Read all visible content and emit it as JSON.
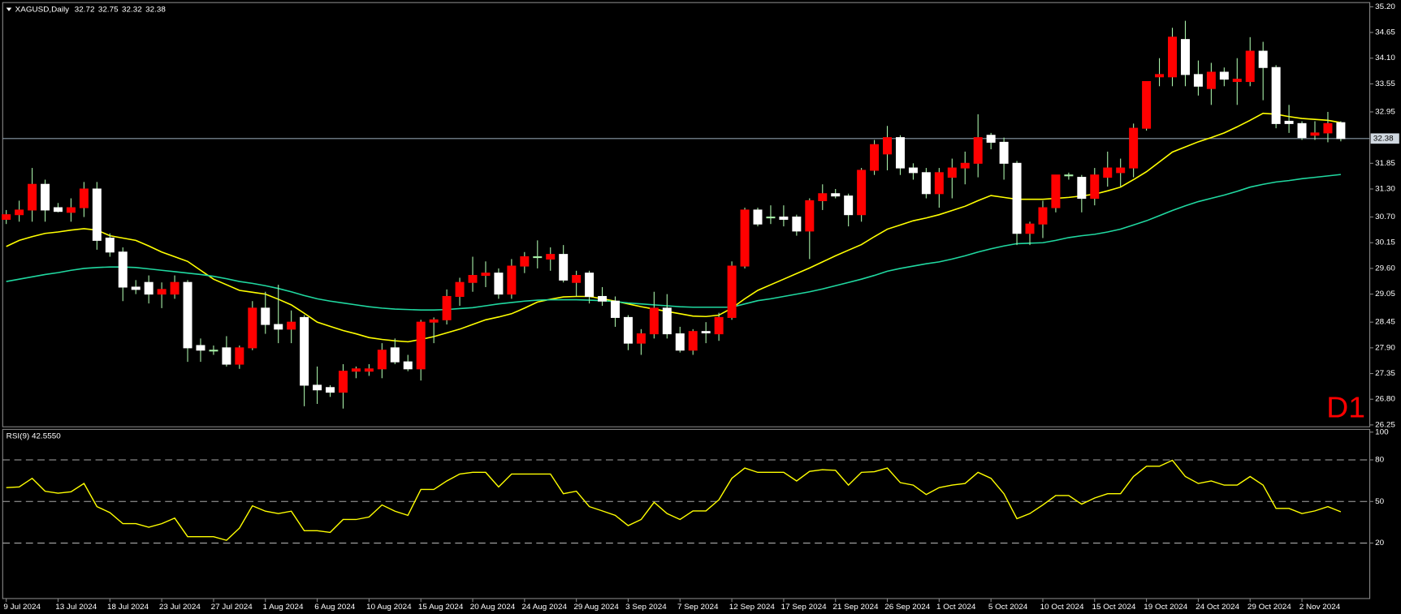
{
  "chart_data": {
    "type": "candlestick",
    "title": "XAGUSD,Daily",
    "annotation": "D1",
    "up_color": "#ff0000",
    "down_color": "#ffffff",
    "wick_color": "#a8f0a8",
    "last_price_line": true,
    "categories": [
      "9 Jul 2024",
      null,
      null,
      null,
      "13 Jul 2024",
      null,
      null,
      null,
      "18 Jul 2024",
      null,
      null,
      null,
      "23 Jul 2024",
      null,
      null,
      null,
      "27 Jul 2024",
      null,
      null,
      null,
      "1 Aug 2024",
      null,
      null,
      null,
      "6 Aug 2024",
      null,
      null,
      null,
      "10 Aug 2024",
      null,
      null,
      null,
      "15 Aug 2024",
      null,
      null,
      null,
      "20 Aug 2024",
      null,
      null,
      null,
      "24 Aug 2024",
      null,
      null,
      null,
      "29 Aug 2024",
      null,
      null,
      null,
      "3 Sep 2024",
      null,
      null,
      null,
      "7 Sep 2024",
      null,
      null,
      null,
      "12 Sep 2024",
      null,
      null,
      null,
      "17 Sep 2024",
      null,
      null,
      null,
      "21 Sep 2024",
      null,
      null,
      null,
      "26 Sep 2024",
      null,
      null,
      null,
      "1 Oct 2024",
      null,
      null,
      null,
      "5 Oct 2024",
      null,
      null,
      null,
      "10 Oct 2024",
      null,
      null,
      null,
      "15 Oct 2024",
      null,
      null,
      null,
      "19 Oct 2024",
      null,
      null,
      null,
      "24 Oct 2024",
      null,
      null,
      null,
      "29 Oct 2024",
      null,
      null,
      null,
      "2 Nov 2024",
      null,
      null,
      null
    ],
    "open": [
      30.65,
      30.75,
      30.85,
      31.4,
      30.9,
      30.8,
      30.9,
      31.3,
      30.25,
      29.95,
      29.2,
      29.3,
      29.05,
      29.05,
      29.3,
      27.95,
      27.85,
      27.9,
      27.55,
      27.9,
      28.75,
      28.4,
      28.3,
      28.55,
      27.1,
      27.05,
      26.95,
      27.4,
      27.4,
      27.45,
      27.9,
      27.6,
      27.45,
      28.45,
      28.5,
      29.0,
      29.3,
      29.45,
      29.5,
      29.05,
      29.65,
      29.85,
      29.8,
      29.9,
      29.3,
      29.5,
      29.0,
      28.9,
      28.55,
      28.0,
      28.2,
      28.75,
      28.2,
      27.85,
      28.25,
      28.2,
      28.55,
      29.65,
      30.85,
      30.7,
      30.7,
      30.7,
      30.4,
      31.05,
      31.2,
      31.15,
      30.75,
      31.7,
      32.05,
      32.4,
      31.75,
      31.65,
      31.2,
      31.55,
      31.75,
      31.85,
      32.45,
      32.3,
      31.85,
      30.35,
      30.55,
      30.9,
      31.6,
      31.55,
      31.1,
      31.55,
      31.65,
      31.75,
      32.6,
      33.7,
      33.7,
      34.5,
      33.75,
      33.45,
      33.8,
      33.6,
      33.6,
      34.25,
      33.9,
      32.75,
      32.7,
      32.45,
      32.5,
      32.72
    ],
    "high": [
      30.85,
      31.05,
      31.75,
      31.5,
      31.0,
      31.1,
      31.45,
      31.45,
      30.35,
      30.05,
      29.35,
      29.45,
      29.3,
      29.45,
      29.35,
      28.1,
      27.95,
      28.15,
      27.95,
      28.9,
      29.1,
      29.25,
      28.7,
      28.6,
      27.5,
      27.1,
      27.55,
      27.5,
      27.55,
      28.0,
      28.1,
      27.75,
      28.5,
      28.55,
      29.15,
      29.4,
      29.85,
      29.75,
      29.6,
      29.8,
      29.95,
      30.2,
      30.05,
      30.1,
      29.55,
      29.55,
      29.2,
      29.0,
      28.6,
      28.3,
      29.1,
      29.05,
      28.35,
      28.3,
      28.45,
      28.65,
      29.75,
      30.9,
      30.9,
      30.95,
      30.95,
      30.75,
      31.1,
      31.4,
      31.3,
      31.2,
      31.75,
      32.35,
      32.65,
      32.45,
      31.85,
      31.75,
      31.75,
      31.95,
      32.1,
      32.9,
      32.5,
      32.4,
      31.9,
      30.6,
      31.05,
      31.6,
      31.65,
      31.6,
      31.75,
      32.1,
      31.95,
      32.7,
      33.6,
      34.1,
      34.75,
      34.9,
      34.05,
      34.0,
      33.9,
      34.1,
      34.55,
      34.45,
      33.95,
      33.1,
      32.75,
      32.75,
      32.95,
      32.75
    ],
    "low": [
      30.55,
      30.6,
      30.6,
      30.6,
      30.8,
      30.6,
      30.7,
      30.0,
      29.85,
      28.9,
      29.05,
      28.85,
      28.75,
      28.95,
      27.6,
      27.6,
      27.75,
      27.5,
      27.45,
      27.85,
      28.2,
      28.0,
      28.0,
      26.65,
      26.7,
      26.85,
      26.6,
      27.25,
      27.3,
      27.25,
      27.55,
      27.4,
      27.2,
      28.0,
      28.4,
      28.8,
      29.1,
      29.2,
      28.95,
      28.95,
      29.5,
      29.6,
      29.55,
      29.3,
      29.0,
      28.85,
      28.8,
      28.35,
      27.85,
      27.75,
      28.1,
      28.1,
      27.8,
      27.75,
      28.0,
      28.05,
      28.5,
      29.6,
      30.5,
      30.55,
      30.5,
      30.3,
      29.8,
      30.85,
      31.1,
      30.5,
      30.6,
      31.6,
      31.7,
      31.6,
      31.5,
      31.1,
      30.9,
      31.1,
      31.4,
      31.55,
      32.15,
      31.5,
      30.1,
      30.1,
      30.25,
      30.8,
      31.5,
      30.8,
      30.95,
      31.35,
      31.35,
      31.55,
      32.55,
      33.5,
      33.5,
      33.5,
      33.3,
      33.1,
      33.5,
      33.1,
      33.5,
      33.2,
      32.6,
      32.5,
      32.35,
      32.35,
      32.3,
      32.32
    ],
    "close": [
      30.75,
      30.85,
      31.4,
      30.85,
      30.82,
      30.9,
      31.3,
      30.2,
      29.95,
      29.2,
      29.15,
      29.05,
      29.15,
      29.3,
      27.9,
      27.85,
      27.85,
      27.55,
      27.9,
      28.75,
      28.4,
      28.3,
      28.45,
      27.1,
      27.0,
      26.95,
      27.4,
      27.45,
      27.45,
      27.85,
      27.6,
      27.45,
      28.45,
      28.5,
      29.0,
      29.3,
      29.45,
      29.5,
      29.05,
      29.65,
      29.85,
      29.85,
      29.9,
      29.35,
      29.45,
      29.0,
      28.9,
      28.55,
      28.0,
      28.2,
      28.75,
      28.2,
      27.85,
      28.25,
      28.22,
      28.55,
      29.65,
      30.85,
      30.55,
      30.7,
      30.65,
      30.4,
      31.05,
      31.2,
      31.15,
      30.75,
      31.7,
      32.25,
      32.4,
      31.75,
      31.65,
      31.2,
      31.65,
      31.75,
      31.85,
      32.4,
      32.3,
      31.85,
      30.35,
      30.55,
      30.9,
      31.6,
      31.6,
      31.1,
      31.6,
      31.75,
      31.75,
      32.6,
      33.6,
      33.75,
      34.55,
      33.75,
      33.5,
      33.8,
      33.65,
      33.65,
      34.25,
      33.9,
      32.7,
      32.7,
      32.4,
      32.5,
      32.7,
      32.38
    ],
    "moving_averages": [
      {
        "color": "#ffff00",
        "values": [
          30.07,
          30.2,
          30.28,
          30.35,
          30.38,
          30.42,
          30.45,
          30.42,
          30.3,
          30.25,
          30.2,
          30.08,
          29.95,
          29.85,
          29.75,
          29.56,
          29.37,
          29.25,
          29.13,
          29.09,
          29.05,
          28.94,
          28.82,
          28.64,
          28.45,
          28.36,
          28.27,
          28.2,
          28.12,
          28.08,
          28.05,
          28.03,
          28.08,
          28.14,
          28.22,
          28.3,
          28.4,
          28.5,
          28.56,
          28.63,
          28.75,
          28.88,
          28.94,
          28.99,
          29.0,
          29.0,
          28.95,
          28.9,
          28.84,
          28.78,
          28.73,
          28.68,
          28.63,
          28.58,
          28.57,
          28.6,
          28.75,
          28.95,
          29.13,
          29.25,
          29.37,
          29.49,
          29.61,
          29.74,
          29.87,
          29.99,
          30.11,
          30.28,
          30.44,
          30.53,
          30.62,
          30.68,
          30.75,
          30.84,
          30.93,
          31.05,
          31.16,
          31.12,
          31.08,
          31.08,
          31.08,
          31.1,
          31.12,
          31.15,
          31.19,
          31.26,
          31.34,
          31.5,
          31.67,
          31.88,
          32.09,
          32.2,
          32.31,
          32.4,
          32.5,
          32.63,
          32.77,
          32.92,
          32.9,
          32.85,
          32.81,
          32.79,
          32.77,
          32.72
        ]
      },
      {
        "color": "#20d8a0",
        "values": [
          29.32,
          29.37,
          29.42,
          29.47,
          29.51,
          29.56,
          29.6,
          29.62,
          29.63,
          29.63,
          29.62,
          29.59,
          29.56,
          29.53,
          29.5,
          29.47,
          29.43,
          29.38,
          29.32,
          29.28,
          29.23,
          29.17,
          29.1,
          29.02,
          28.95,
          28.9,
          28.86,
          28.82,
          28.78,
          28.75,
          28.73,
          28.72,
          28.71,
          28.71,
          28.72,
          28.74,
          28.76,
          28.8,
          28.84,
          28.87,
          28.9,
          28.92,
          28.93,
          28.93,
          28.93,
          28.92,
          28.91,
          28.89,
          28.86,
          28.84,
          28.82,
          28.8,
          28.78,
          28.77,
          28.77,
          28.77,
          28.77,
          28.84,
          28.91,
          28.95,
          29.0,
          29.05,
          29.1,
          29.16,
          29.23,
          29.3,
          29.37,
          29.45,
          29.54,
          29.6,
          29.65,
          29.7,
          29.74,
          29.8,
          29.87,
          29.95,
          30.02,
          30.08,
          30.13,
          30.14,
          30.15,
          30.2,
          30.26,
          30.3,
          30.33,
          30.38,
          30.44,
          30.53,
          30.62,
          30.73,
          30.84,
          30.94,
          31.03,
          31.1,
          31.17,
          31.25,
          31.34,
          31.4,
          31.45,
          31.48,
          31.52,
          31.55,
          31.58,
          31.61
        ]
      }
    ],
    "ylim": [
      26.21,
      35.29
    ],
    "yticks": [
      {
        "value": 35.2,
        "label": "35.20"
      },
      34.65,
      {
        "value": 34.1,
        "label": "34.10"
      },
      33.55,
      32.95,
      31.85,
      {
        "value": 31.3,
        "label": "31.30"
      },
      {
        "value": 30.7,
        "label": "30.70"
      },
      30.15,
      {
        "value": 29.6,
        "label": "29.60"
      },
      29.05,
      28.45,
      {
        "value": 27.9,
        "label": "27.90"
      },
      27.35,
      {
        "value": 26.8,
        "label": "26.80"
      },
      26.25
    ],
    "rsi": {
      "title": "RSI(9) 42.5550",
      "color": "#ffff00",
      "values": [
        60,
        60.5,
        66.7,
        57.4,
        56,
        57,
        63,
        46.3,
        42,
        34,
        34,
        31.4,
        34,
        38,
        24.6,
        24.6,
        24.6,
        22,
        30.8,
        46.9,
        43,
        41.3,
        43,
        28.9,
        28.9,
        27.7,
        37,
        37,
        38.8,
        47.5,
        43,
        40,
        58.7,
        58.7,
        64.8,
        69.8,
        71,
        71,
        60.5,
        69.8,
        69.8,
        69.8,
        69.8,
        55.6,
        57.4,
        46.3,
        43.2,
        40,
        32.6,
        37,
        49.4,
        41.3,
        37,
        43.2,
        43.2,
        51.2,
        66.7,
        74.1,
        71,
        71,
        71,
        64.8,
        71.7,
        72.9,
        72.5,
        61.8,
        71,
        71.5,
        74.1,
        63.6,
        61.8,
        55,
        60,
        61.8,
        63,
        71,
        66.7,
        55.6,
        37.6,
        41.3,
        47.5,
        54.3,
        54.3,
        48.1,
        52.5,
        55.6,
        55.6,
        68,
        75.4,
        75.4,
        79.7,
        68,
        63,
        64.8,
        61.8,
        61.8,
        68,
        61.8,
        45,
        45,
        41.3,
        43.2,
        46.3,
        42.555
      ],
      "ylim": [
        -20,
        102
      ],
      "yticks": [
        100,
        80,
        50,
        20
      ],
      "levels": [
        80,
        50,
        20
      ]
    }
  }
}
